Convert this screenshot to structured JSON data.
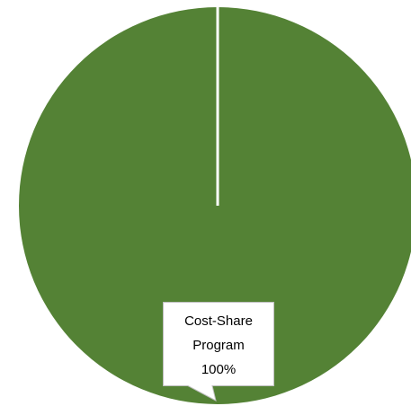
{
  "chart_data": {
    "type": "pie",
    "slices": [
      {
        "name": "Cost-Share Program",
        "value": 100,
        "label_lines": [
          "Cost-Share",
          "Program",
          "100%"
        ],
        "color": "#548235"
      }
    ],
    "divider_color": "#ffffff"
  }
}
